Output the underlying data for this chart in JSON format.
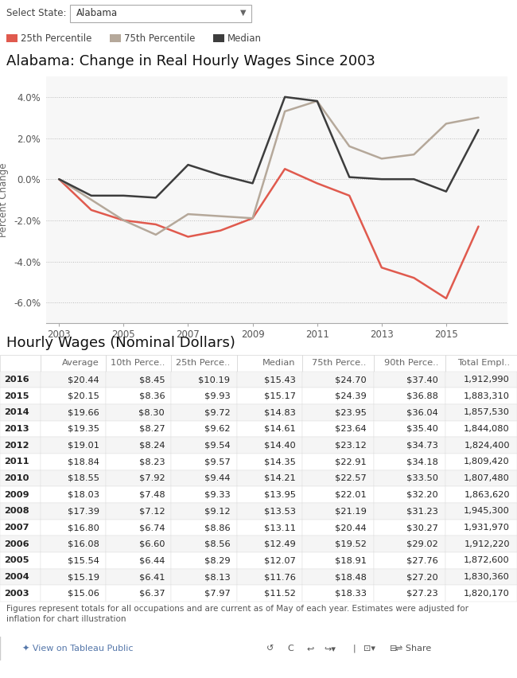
{
  "title_chart": "Alabama: Change in Real Hourly Wages Since 2003",
  "title_table": "Hourly Wages (Nominal Dollars)",
  "select_label": "Select State:",
  "select_value": "Alabama",
  "ylabel": "Percent Change",
  "years": [
    2003,
    2004,
    2005,
    2006,
    2007,
    2008,
    2009,
    2010,
    2011,
    2012,
    2013,
    2014,
    2015,
    2016
  ],
  "p25": [
    0.0,
    -1.5,
    -2.0,
    -2.2,
    -2.8,
    -2.5,
    -1.9,
    0.5,
    -0.2,
    -0.8,
    -4.3,
    -4.8,
    -5.8,
    -2.3
  ],
  "p75": [
    0.0,
    -1.0,
    -2.0,
    -2.7,
    -1.7,
    -1.8,
    -1.9,
    3.3,
    3.8,
    1.6,
    1.0,
    1.2,
    2.7,
    3.0
  ],
  "median": [
    0.0,
    -0.8,
    -0.8,
    -0.9,
    0.7,
    0.2,
    -0.2,
    4.0,
    3.8,
    0.1,
    0.0,
    0.0,
    -0.6,
    2.4
  ],
  "color_p25": "#e05a4e",
  "color_p75": "#b5a89a",
  "color_median": "#3d3d3d",
  "bg_chart": "#f7f7f7",
  "bg_page": "#ffffff",
  "zero_line_color": "#bbbbbb",
  "table_columns": [
    "",
    "Average",
    "10th Perce..",
    "25th Perce..",
    "Median",
    "75th Perce..",
    "90th Perce..",
    "Total Empl.."
  ],
  "table_data": [
    [
      "2016",
      "$20.44",
      "$8.45",
      "$10.19",
      "$15.43",
      "$24.70",
      "$37.40",
      "1,912,990"
    ],
    [
      "2015",
      "$20.15",
      "$8.36",
      "$9.93",
      "$15.17",
      "$24.39",
      "$36.88",
      "1,883,310"
    ],
    [
      "2014",
      "$19.66",
      "$8.30",
      "$9.72",
      "$14.83",
      "$23.95",
      "$36.04",
      "1,857,530"
    ],
    [
      "2013",
      "$19.35",
      "$8.27",
      "$9.62",
      "$14.61",
      "$23.64",
      "$35.40",
      "1,844,080"
    ],
    [
      "2012",
      "$19.01",
      "$8.24",
      "$9.54",
      "$14.40",
      "$23.12",
      "$34.73",
      "1,824,400"
    ],
    [
      "2011",
      "$18.84",
      "$8.23",
      "$9.57",
      "$14.35",
      "$22.91",
      "$34.18",
      "1,809,420"
    ],
    [
      "2010",
      "$18.55",
      "$7.92",
      "$9.44",
      "$14.21",
      "$22.57",
      "$33.50",
      "1,807,480"
    ],
    [
      "2009",
      "$18.03",
      "$7.48",
      "$9.33",
      "$13.95",
      "$22.01",
      "$32.20",
      "1,863,620"
    ],
    [
      "2008",
      "$17.39",
      "$7.12",
      "$9.12",
      "$13.53",
      "$21.19",
      "$31.23",
      "1,945,300"
    ],
    [
      "2007",
      "$16.80",
      "$6.74",
      "$8.86",
      "$13.11",
      "$20.44",
      "$30.27",
      "1,931,970"
    ],
    [
      "2006",
      "$16.08",
      "$6.60",
      "$8.56",
      "$12.49",
      "$19.52",
      "$29.02",
      "1,912,220"
    ],
    [
      "2005",
      "$15.54",
      "$6.44",
      "$8.29",
      "$12.07",
      "$18.91",
      "$27.76",
      "1,872,600"
    ],
    [
      "2004",
      "$15.19",
      "$6.41",
      "$8.13",
      "$11.76",
      "$18.48",
      "$27.20",
      "1,830,360"
    ],
    [
      "2003",
      "$15.06",
      "$6.37",
      "$7.97",
      "$11.52",
      "$18.33",
      "$27.23",
      "1,820,170"
    ]
  ],
  "footnote": "Figures represent totals for all occupations and are current as of May of each year. Estimates were adjusted for\ninflation for chart illustration",
  "tableau_label": "View on Tableau Public",
  "xtick_years": [
    2003,
    2005,
    2007,
    2009,
    2011,
    2013,
    2015
  ],
  "ytick_labels": [
    "4.0%",
    "2.0%",
    "0.0%",
    "-2.0%",
    "-4.0%",
    "-6.0%"
  ],
  "ytick_vals": [
    4.0,
    2.0,
    0.0,
    -2.0,
    -4.0,
    -6.0
  ],
  "ylim": [
    -7.0,
    5.0
  ],
  "col_widths": [
    0.065,
    0.105,
    0.105,
    0.105,
    0.105,
    0.115,
    0.115,
    0.115
  ]
}
